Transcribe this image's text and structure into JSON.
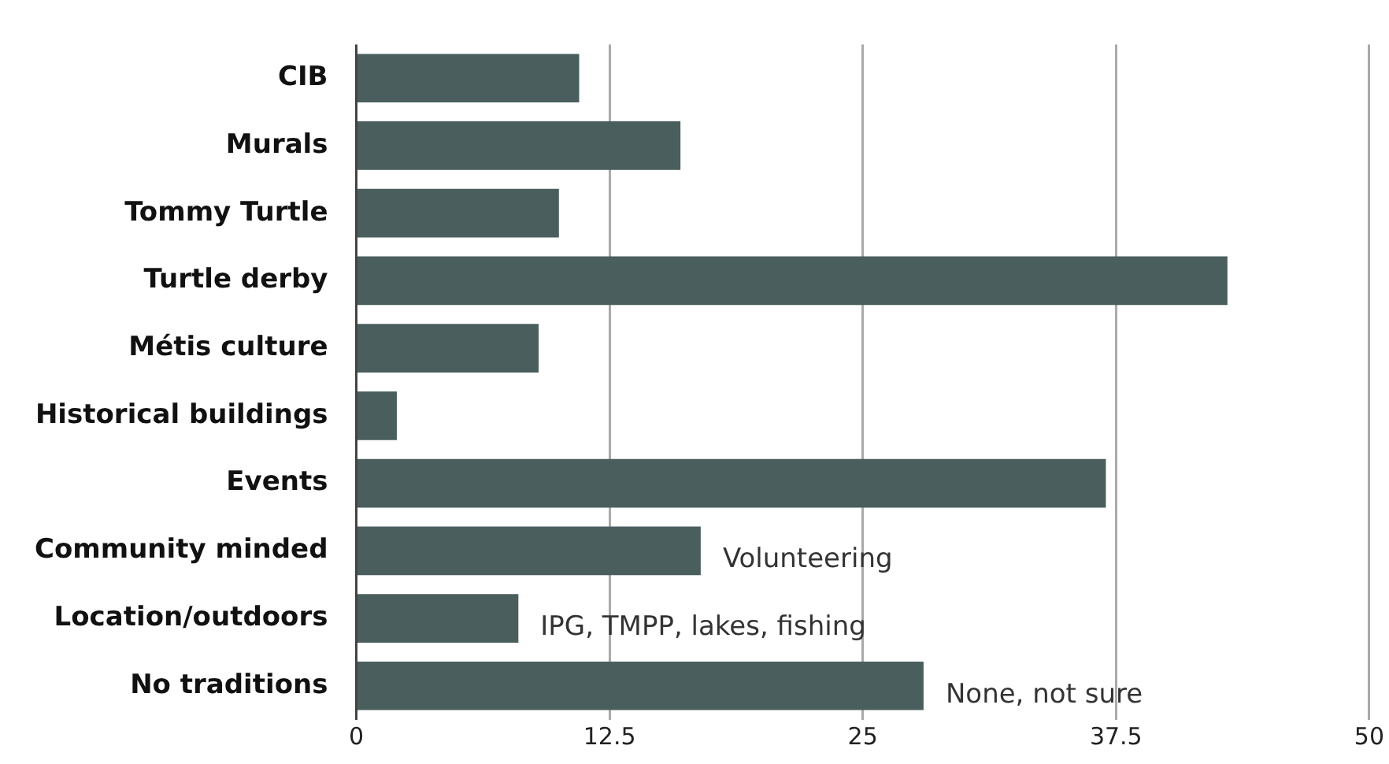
{
  "chart_data": {
    "type": "bar",
    "orientation": "horizontal",
    "categories": [
      "CIB",
      "Murals",
      "Tommy Turtle",
      "Turtle derby",
      "Métis culture",
      "Historical buildings",
      "Events",
      "Community minded",
      "Location/outdoors",
      "No traditions"
    ],
    "values": [
      11,
      16,
      10,
      43,
      9,
      2,
      37,
      17,
      8,
      28
    ],
    "color": "#4a5e5e",
    "xlim": [
      0,
      50
    ],
    "xticks": [
      0,
      12.5,
      25,
      37.5,
      50
    ],
    "grid": "x",
    "legend": false,
    "annotations": [
      {
        "text": "Volunteering",
        "x": 17,
        "y": "Community minded"
      },
      {
        "text": "IPG, TMPP, lakes, fishing",
        "x": 8,
        "y": "Location/outdoors"
      },
      {
        "text": "None, not sure",
        "x": 28,
        "y": "No traditions"
      }
    ]
  }
}
